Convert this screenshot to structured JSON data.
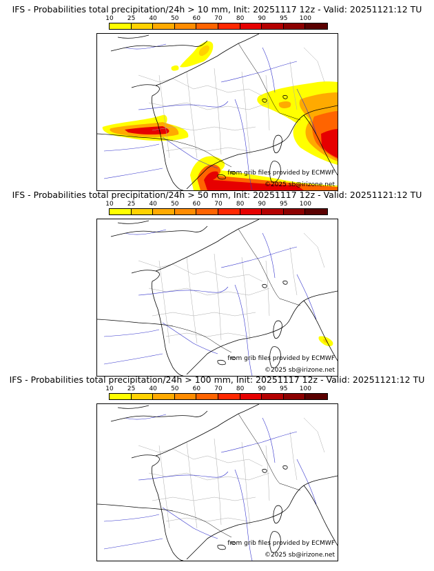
{
  "panels": [
    {
      "title": "IFS - Probabilities total precipitation/24h > 10 mm, Init: 20251117 12z - Valid: 20251121:12 TU",
      "threshold_mm": 10
    },
    {
      "title": "IFS - Probabilities total precipitation/24h > 50 mm, Init: 20251117 12z - Valid: 20251121:12 TU",
      "threshold_mm": 50
    },
    {
      "title": "IFS - Probabilities total precipitation/24h > 100 mm, Init: 20251117 12z - Valid: 20251121:12 TU",
      "threshold_mm": 100
    }
  ],
  "legend": {
    "ticks": [
      "10",
      "25",
      "40",
      "50",
      "60",
      "70",
      "80",
      "90",
      "95",
      "100"
    ],
    "colors": [
      "#ffff00",
      "#ffd200",
      "#ffaa00",
      "#ff8c00",
      "#ff6400",
      "#ff2800",
      "#e60000",
      "#b40000",
      "#8c0000",
      "#5a0000"
    ]
  },
  "credits": {
    "source": "from grib files provided by ECMWF",
    "copyright": "©2025 sb@irizone.net"
  },
  "colors": {
    "coast": "#000000",
    "rivers": "#3333cc",
    "admin": "#aaaaaa"
  }
}
